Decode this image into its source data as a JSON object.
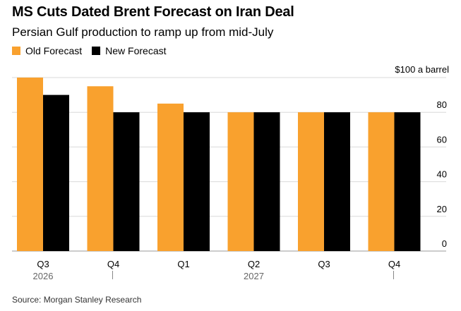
{
  "title": "MS Cuts Dated Brent Forecast on Iran Deal",
  "subtitle": "Persian Gulf production to ramp up from mid-July",
  "source": "Source: Morgan Stanley Research",
  "colors": {
    "old": "#f9a12e",
    "new": "#000000",
    "grid": "#d9d9d9"
  },
  "chart_data": {
    "type": "bar",
    "categories": [
      "Q3",
      "Q4",
      "Q1",
      "Q2",
      "Q3",
      "Q4"
    ],
    "year_labels": [
      {
        "label": "2026",
        "category_index": 0
      },
      {
        "label": "2027",
        "category_index": 3
      }
    ],
    "series": [
      {
        "name": "Old Forecast",
        "values": [
          100,
          95,
          85,
          80,
          80,
          80
        ]
      },
      {
        "name": "New Forecast",
        "values": [
          90,
          80,
          80,
          80,
          80,
          80
        ]
      }
    ],
    "yunit": "$100 a barrel",
    "yticks": [
      0,
      20,
      40,
      60,
      80
    ],
    "ylim": [
      0,
      100
    ],
    "grid": true,
    "legend_position": "top-left"
  }
}
